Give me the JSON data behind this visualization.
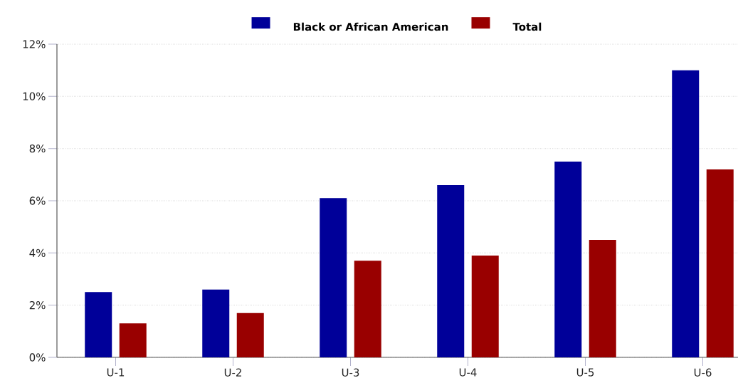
{
  "chart_data": {
    "type": "bar",
    "categories": [
      "U-1",
      "U-2",
      "U-3",
      "U-4",
      "U-5",
      "U-6"
    ],
    "series": [
      {
        "name": "Black or African American",
        "color": "#000099",
        "values": [
          2.5,
          2.6,
          6.1,
          6.6,
          7.5,
          11.0
        ]
      },
      {
        "name": "Total",
        "color": "#990000",
        "values": [
          1.3,
          1.7,
          3.7,
          3.9,
          4.5,
          7.2
        ]
      }
    ],
    "ylim": [
      0,
      12
    ],
    "yticks": [
      {
        "value": 0,
        "label": "0%"
      },
      {
        "value": 2,
        "label": "2%"
      },
      {
        "value": 4,
        "label": "4%"
      },
      {
        "value": 6,
        "label": "6%"
      },
      {
        "value": 8,
        "label": "8%"
      },
      {
        "value": 10,
        "label": "10%"
      },
      {
        "value": 12,
        "label": "12%"
      }
    ],
    "grid": "y",
    "legend": "top"
  }
}
